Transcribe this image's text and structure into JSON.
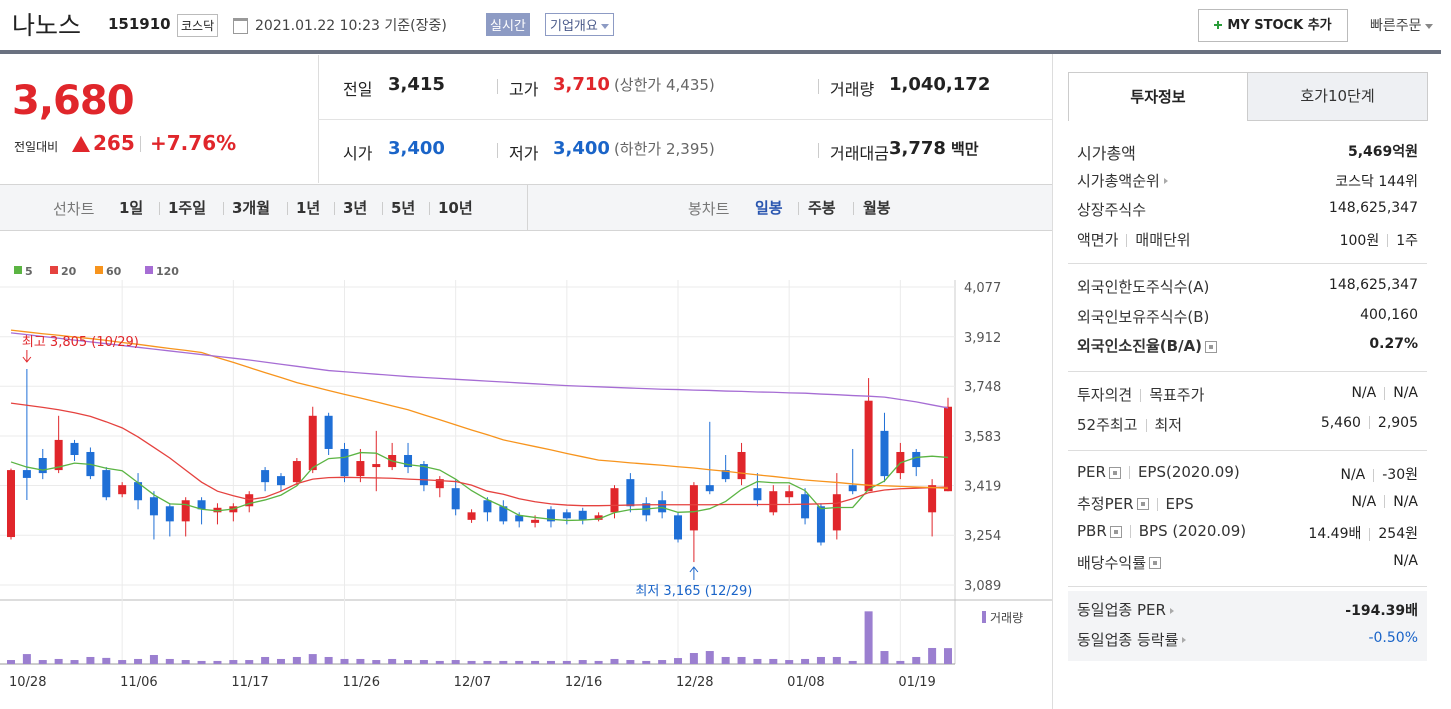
{
  "header": {
    "name": "나노스",
    "code": "151910",
    "market": "코스닥",
    "datetime": "2021.01.22 10:23 기준(장중)",
    "realtime": "실시간",
    "company": "기업개요",
    "mystock": "MY STOCK 추가",
    "quick_order": "빠른주문"
  },
  "quote": {
    "price": "3,680",
    "change_label": "전일대비",
    "change": "265",
    "change_rate": "+7.76%",
    "rows": [
      [
        {
          "label": "전일",
          "value": "3,415"
        },
        {
          "label": "고가",
          "value": "3,710",
          "color": "#e0262b",
          "note": "(상한가 4,435)"
        },
        {
          "label": "거래량",
          "value": "1,040,172"
        }
      ],
      [
        {
          "label": "시가",
          "value": "3,400",
          "color": "#1a64c8"
        },
        {
          "label": "저가",
          "value": "3,400",
          "color": "#1a64c8",
          "note": "(하한가 2,395)"
        },
        {
          "label": "거래대금",
          "value": "3,778",
          "unit": "백만"
        }
      ]
    ]
  },
  "chart_controls": {
    "line_label": "선차트",
    "periods": [
      "1일",
      "1주일",
      "3개월",
      "1년",
      "3년",
      "5년",
      "10년"
    ],
    "candle_label": "봉차트",
    "candle_periods": [
      "일봉",
      "주봉",
      "월봉"
    ],
    "selected_candle_period": 0
  },
  "chart_data": {
    "type": "candlestick",
    "up_color": "#e0262b",
    "down_color": "#1f6fd6",
    "grid": true,
    "categories": [
      "10/28",
      null,
      null,
      null,
      null,
      null,
      null,
      "11/06",
      null,
      null,
      null,
      null,
      null,
      null,
      "11/17",
      null,
      null,
      null,
      null,
      null,
      null,
      "11/26",
      null,
      null,
      null,
      null,
      null,
      null,
      "12/07",
      null,
      null,
      null,
      null,
      null,
      null,
      "12/16",
      null,
      null,
      null,
      null,
      null,
      null,
      "12/28",
      null,
      null,
      null,
      null,
      null,
      null,
      "01/08",
      null,
      null,
      null,
      null,
      null,
      null,
      "01/19",
      null,
      null,
      null
    ],
    "ylim": [
      3089,
      4077
    ],
    "yticks": [
      {
        "value": 4077,
        "label": "4,077"
      },
      {
        "value": 3912,
        "label": "3,912"
      },
      {
        "value": 3748,
        "label": "3,748"
      },
      {
        "value": 3583,
        "label": "3,583"
      },
      {
        "value": 3419,
        "label": "3,419"
      },
      {
        "value": 3254,
        "label": "3,254"
      },
      {
        "value": 3089,
        "label": "3,089"
      }
    ],
    "candles": {
      "open": [
        3248,
        3470,
        3510,
        3470,
        3560,
        3530,
        3470,
        3390,
        3430,
        3380,
        3350,
        3300,
        3370,
        3330,
        3330,
        3350,
        3470,
        3450,
        3430,
        3470,
        3650,
        3540,
        3450,
        3480,
        3480,
        3520,
        3490,
        3410,
        3410,
        3305,
        3370,
        3350,
        3320,
        3295,
        3340,
        3330,
        3335,
        3305,
        3330,
        3440,
        3360,
        3370,
        3320,
        3270,
        3420,
        3470,
        3440,
        3410,
        3330,
        3380,
        3390,
        3350,
        3270,
        3420,
        3400,
        3600,
        3460,
        3530,
        3330,
        3400
      ],
      "high": [
        3475,
        3805,
        3540,
        3650,
        3570,
        3545,
        3480,
        3430,
        3460,
        3400,
        3360,
        3380,
        3380,
        3360,
        3360,
        3400,
        3480,
        3460,
        3510,
        3680,
        3660,
        3560,
        3540,
        3600,
        3560,
        3560,
        3500,
        3450,
        3440,
        3340,
        3380,
        3370,
        3330,
        3320,
        3350,
        3340,
        3345,
        3330,
        3420,
        3460,
        3380,
        3400,
        3330,
        3430,
        3630,
        3520,
        3560,
        3460,
        3420,
        3420,
        3410,
        3360,
        3460,
        3540,
        3775,
        3660,
        3560,
        3540,
        3440,
        3710
      ],
      "low": [
        3240,
        3371,
        3440,
        3460,
        3500,
        3440,
        3370,
        3380,
        3340,
        3240,
        3250,
        3250,
        3290,
        3290,
        3300,
        3330,
        3400,
        3400,
        3420,
        3460,
        3520,
        3430,
        3430,
        3400,
        3470,
        3460,
        3400,
        3380,
        3320,
        3295,
        3300,
        3290,
        3280,
        3280,
        3280,
        3290,
        3290,
        3300,
        3310,
        3330,
        3300,
        3310,
        3230,
        3165,
        3390,
        3430,
        3420,
        3350,
        3320,
        3360,
        3290,
        3220,
        3240,
        3390,
        3400,
        3430,
        3440,
        3450,
        3250,
        3400
      ],
      "close": [
        3470,
        3444,
        3460,
        3570,
        3520,
        3450,
        3380,
        3420,
        3370,
        3320,
        3300,
        3370,
        3340,
        3345,
        3350,
        3390,
        3430,
        3420,
        3500,
        3650,
        3540,
        3450,
        3500,
        3490,
        3520,
        3480,
        3420,
        3440,
        3340,
        3330,
        3330,
        3300,
        3300,
        3305,
        3300,
        3310,
        3305,
        3320,
        3410,
        3350,
        3320,
        3330,
        3240,
        3420,
        3400,
        3440,
        3530,
        3370,
        3400,
        3400,
        3310,
        3230,
        3390,
        3400,
        3700,
        3450,
        3530,
        3480,
        3420,
        3680
      ]
    },
    "moving_averages": [
      {
        "name": "5",
        "color": "#5bb443",
        "values": [
          3497,
          3480,
          3470,
          3480,
          3493,
          3489,
          3476,
          3468,
          3428,
          3388,
          3358,
          3356,
          3340,
          3335,
          3341,
          3359,
          3371,
          3387,
          3418,
          3478,
          3508,
          3512,
          3528,
          3526,
          3500,
          3488,
          3482,
          3470,
          3440,
          3402,
          3372,
          3348,
          3320,
          3313,
          3307,
          3303,
          3304,
          3308,
          3329,
          3339,
          3341,
          3346,
          3330,
          3332,
          3342,
          3366,
          3406,
          3432,
          3428,
          3428,
          3402,
          3342,
          3346,
          3346,
          3406,
          3434,
          3494,
          3512,
          3516,
          3512
        ]
      },
      {
        "name": "20",
        "color": "#e5423f",
        "values": [
          3692,
          3685,
          3678,
          3670,
          3660,
          3648,
          3630,
          3610,
          3580,
          3545,
          3510,
          3470,
          3430,
          3400,
          3385,
          3372,
          3380,
          3400,
          3425,
          3440,
          3445,
          3446,
          3445,
          3444,
          3443,
          3440,
          3438,
          3435,
          3432,
          3420,
          3400,
          3390,
          3375,
          3365,
          3358,
          3354,
          3352,
          3352,
          3353,
          3354,
          3355,
          3355,
          3355,
          3355,
          3355,
          3356,
          3356,
          3356,
          3356,
          3356,
          3357,
          3358,
          3360,
          3375,
          3395,
          3404,
          3408,
          3410,
          3412,
          3414
        ]
      },
      {
        "name": "60",
        "color": "#f7941d",
        "values": [
          3934,
          3928,
          3922,
          3917,
          3911,
          3906,
          3900,
          3893,
          3887,
          3880,
          3873,
          3867,
          3860,
          3843,
          3827,
          3810,
          3793,
          3777,
          3760,
          3747,
          3734,
          3721,
          3709,
          3696,
          3683,
          3670,
          3653,
          3637,
          3620,
          3603,
          3587,
          3570,
          3559,
          3548,
          3537,
          3525,
          3514,
          3503,
          3499,
          3494,
          3490,
          3486,
          3481,
          3477,
          3471,
          3466,
          3460,
          3454,
          3449,
          3443,
          3437,
          3433,
          3429,
          3424,
          3420,
          3418,
          3416,
          3414,
          3412,
          3410
        ]
      },
      {
        "name": "120",
        "color": "#a66dd4",
        "values": [
          3925,
          3919,
          3913,
          3907,
          3901,
          3895,
          3889,
          3883,
          3877,
          3871,
          3865,
          3859,
          3853,
          3847,
          3841,
          3835,
          3828,
          3821,
          3814,
          3807,
          3800,
          3796,
          3792,
          3788,
          3784,
          3780,
          3777,
          3774,
          3771,
          3768,
          3765,
          3762,
          3759,
          3756,
          3753,
          3750,
          3748,
          3746,
          3744,
          3742,
          3740,
          3738,
          3737,
          3735,
          3734,
          3732,
          3731,
          3729,
          3728,
          3726,
          3725,
          3722,
          3720,
          3717,
          3715,
          3712,
          3704,
          3696,
          3686,
          3676
        ]
      }
    ],
    "volume": {
      "name": "거래량",
      "color": "#9b7fd0",
      "ylim": [
        0,
        3800000
      ],
      "values": [
        260000,
        650000,
        260000,
        330000,
        260000,
        460000,
        400000,
        260000,
        330000,
        590000,
        330000,
        260000,
        200000,
        200000,
        260000,
        260000,
        460000,
        330000,
        460000,
        650000,
        460000,
        330000,
        330000,
        260000,
        330000,
        260000,
        260000,
        200000,
        260000,
        200000,
        200000,
        200000,
        200000,
        200000,
        200000,
        200000,
        260000,
        200000,
        330000,
        260000,
        200000,
        260000,
        390000,
        720000,
        850000,
        460000,
        460000,
        330000,
        330000,
        260000,
        330000,
        460000,
        460000,
        200000,
        3450000,
        850000,
        200000,
        460000,
        1050000,
        1040172
      ]
    },
    "annotations": [
      {
        "text": "최고 3,805 (10/29)",
        "color": "#e0262b"
      },
      {
        "text": "최저 3,165 (12/29)",
        "color": "#1a64c8"
      }
    ]
  },
  "investment_info": {
    "tabs": [
      "투자정보",
      "호가10단계"
    ],
    "groups": [
      [
        {
          "labels": [
            "시가총액"
          ],
          "values": [
            "5,469억원"
          ],
          "bold": true
        },
        {
          "labels": [
            "시가총액순위"
          ],
          "values": [
            "코스닥 144위"
          ],
          "arrow": true
        },
        {
          "labels": [
            "상장주식수"
          ],
          "values": [
            "148,625,347"
          ]
        },
        {
          "labels": [
            "액면가",
            "매매단위"
          ],
          "values": [
            "100원",
            "1주"
          ]
        }
      ],
      [
        {
          "labels": [
            "외국인한도주식수(A)"
          ],
          "values": [
            "148,625,347"
          ]
        },
        {
          "labels": [
            "외국인보유주식수(B)"
          ],
          "values": [
            "400,160"
          ]
        },
        {
          "labels": [
            "외국인소진율(B/A)"
          ],
          "values": [
            "0.27%"
          ],
          "bold": true,
          "help_icon": true
        }
      ],
      [
        {
          "labels": [
            "투자의견",
            "목표주가"
          ],
          "values": [
            "N/A",
            "N/A"
          ]
        },
        {
          "labels": [
            "52주최고",
            "최저"
          ],
          "values": [
            "5,460",
            "2,905"
          ]
        }
      ],
      [
        {
          "labels": [
            "PER",
            "EPS(2020.09)"
          ],
          "values": [
            "N/A",
            "-30원"
          ],
          "help_icon": true
        },
        {
          "labels": [
            "추정PER",
            "EPS"
          ],
          "values": [
            "N/A",
            "N/A"
          ],
          "help_icon": true
        },
        {
          "labels": [
            "PBR",
            "BPS (2020.09)"
          ],
          "values": [
            "14.49배",
            "254원"
          ],
          "help_icon": true
        },
        {
          "labels": [
            "배당수익률"
          ],
          "values": [
            "N/A"
          ],
          "help_icon": true
        }
      ],
      [
        {
          "labels": [
            "동일업종 PER"
          ],
          "values": [
            "-194.39배"
          ],
          "bold": true,
          "arrow": true
        },
        {
          "labels": [
            "동일업종 등락률"
          ],
          "values": [
            "-0.50%"
          ],
          "arrow": true,
          "color": "#1a64c8"
        }
      ]
    ]
  }
}
